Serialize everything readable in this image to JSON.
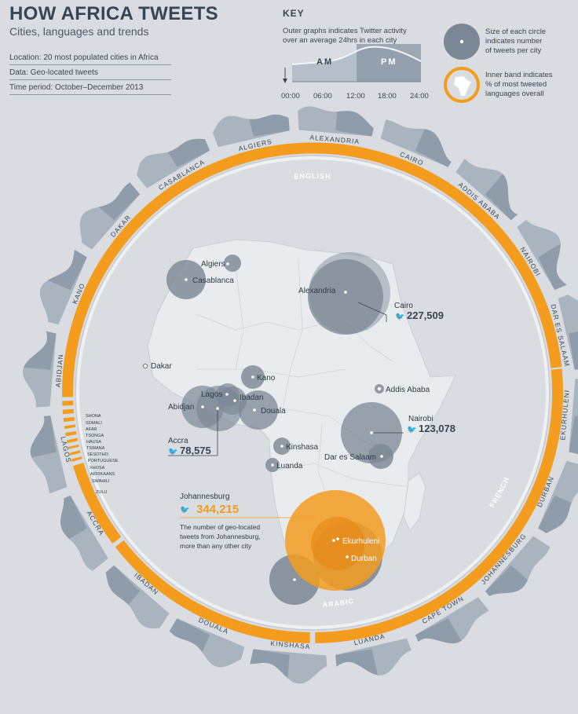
{
  "header": {
    "title": "HOW AFRICA TWEETS",
    "subtitle": "Cities, languages and trends",
    "location": "Location: 20 most populated cities in Africa",
    "data": "Data: Geo-located tweets",
    "period": "Time period: October–December 2013"
  },
  "key": {
    "heading": "KEY",
    "outer_text": [
      "Outer graphs indicates Twitter activity",
      "over an average 24hrs in each city"
    ],
    "am": "AM",
    "pm": "PM",
    "ticks": [
      "00:00",
      "06:00",
      "12:00",
      "18:00",
      "24:00"
    ],
    "circle_text": [
      "Size of each circle",
      "indicates number",
      "of tweets per city"
    ],
    "band_text": [
      "Inner band indicates",
      "% of most tweeted",
      "languages overall"
    ]
  },
  "ring_cities": [
    "ALGIERS",
    "ALEXANDRIA",
    "CAIRO",
    "ADDIS ABABA",
    "NAIROBI",
    "DAR ES SALAAM",
    "EKURHULENI",
    "DURBAN",
    "JOHANNESBURG",
    "CAPE TOWN",
    "LUANDA",
    "KINSHASA",
    "DOUALA",
    "IBADAN",
    "ACCRA",
    "LAGOS",
    "ABIDJAN",
    "KANO",
    "DAKAR",
    "CASABLANCA"
  ],
  "languages": {
    "major": [
      "ENGLISH",
      "FRENCH",
      "ARABIC"
    ],
    "minor": [
      "SHONA",
      "SOMALI",
      "AFAR",
      "TSONGA",
      "HAUSA",
      "TSWANA",
      "SESOTHO",
      "PORTUGUESE",
      "XHOSA",
      "AFRIKAANS",
      "SWAHILI",
      "ZULU"
    ]
  },
  "map_cities": [
    "Algiers",
    "Casablanca",
    "Alexandria",
    "Cairo",
    "Dakar",
    "Kano",
    "Addis Ababa",
    "Lagos",
    "Ibadan",
    "Abidjan",
    "Douala",
    "Accra",
    "Nairobi",
    "Kinshasa",
    "Dar es Salaam",
    "Luanda",
    "Johannesburg",
    "Ekurhuleni",
    "Durban"
  ],
  "callouts": {
    "cairo": "227,509",
    "nairobi": "123,078",
    "accra": "78,575",
    "johannesburg": "344,215",
    "jhb_note": [
      "The number of geo-located",
      "tweets from Johannesburg,",
      "more than any other city"
    ]
  },
  "colors": {
    "orange": "#f39c1e",
    "bubble": "#7b8794",
    "bg": "#d9dde1",
    "land": "#e9ecef"
  }
}
